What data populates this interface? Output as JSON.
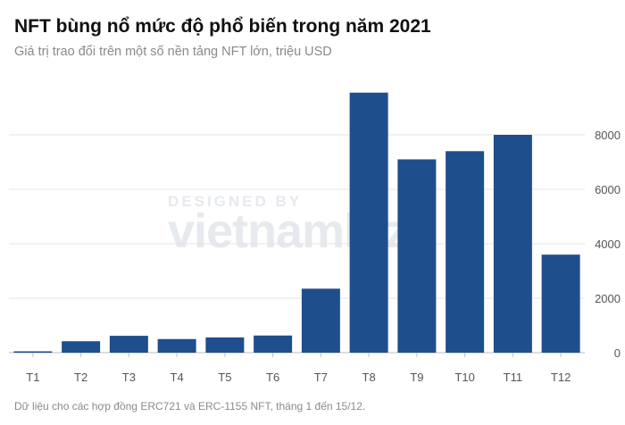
{
  "header": {
    "title": "NFT bùng nổ mức độ phổ biến trong năm 2021",
    "subtitle": "Giá trị trao đổi trên một số nền tảng NFT lớn, triệu USD"
  },
  "footer": {
    "note": "Dữ liệu cho các hợp đồng ERC721 và ERC-1155 NFT, tháng 1 đến 15/12."
  },
  "watermark": {
    "line1": "DESIGNED BY",
    "line2": "vietnambiz"
  },
  "colors": {
    "bar": "#1f4e8c",
    "grid": "#e4e4e4"
  },
  "chart_data": {
    "type": "bar",
    "categories": [
      "T1",
      "T2",
      "T3",
      "T4",
      "T5",
      "T6",
      "T7",
      "T8",
      "T9",
      "T10",
      "T11",
      "T12"
    ],
    "values": [
      50,
      420,
      620,
      500,
      560,
      630,
      2350,
      9550,
      7100,
      7400,
      8000,
      3600
    ],
    "ylim": [
      0,
      10000
    ],
    "yticks": [
      0,
      2000,
      4000,
      6000,
      8000
    ],
    "ytick_labels": [
      "0",
      "2000",
      "4000",
      "6000",
      "8000"
    ],
    "y_axis_position": "right",
    "grid": true
  }
}
